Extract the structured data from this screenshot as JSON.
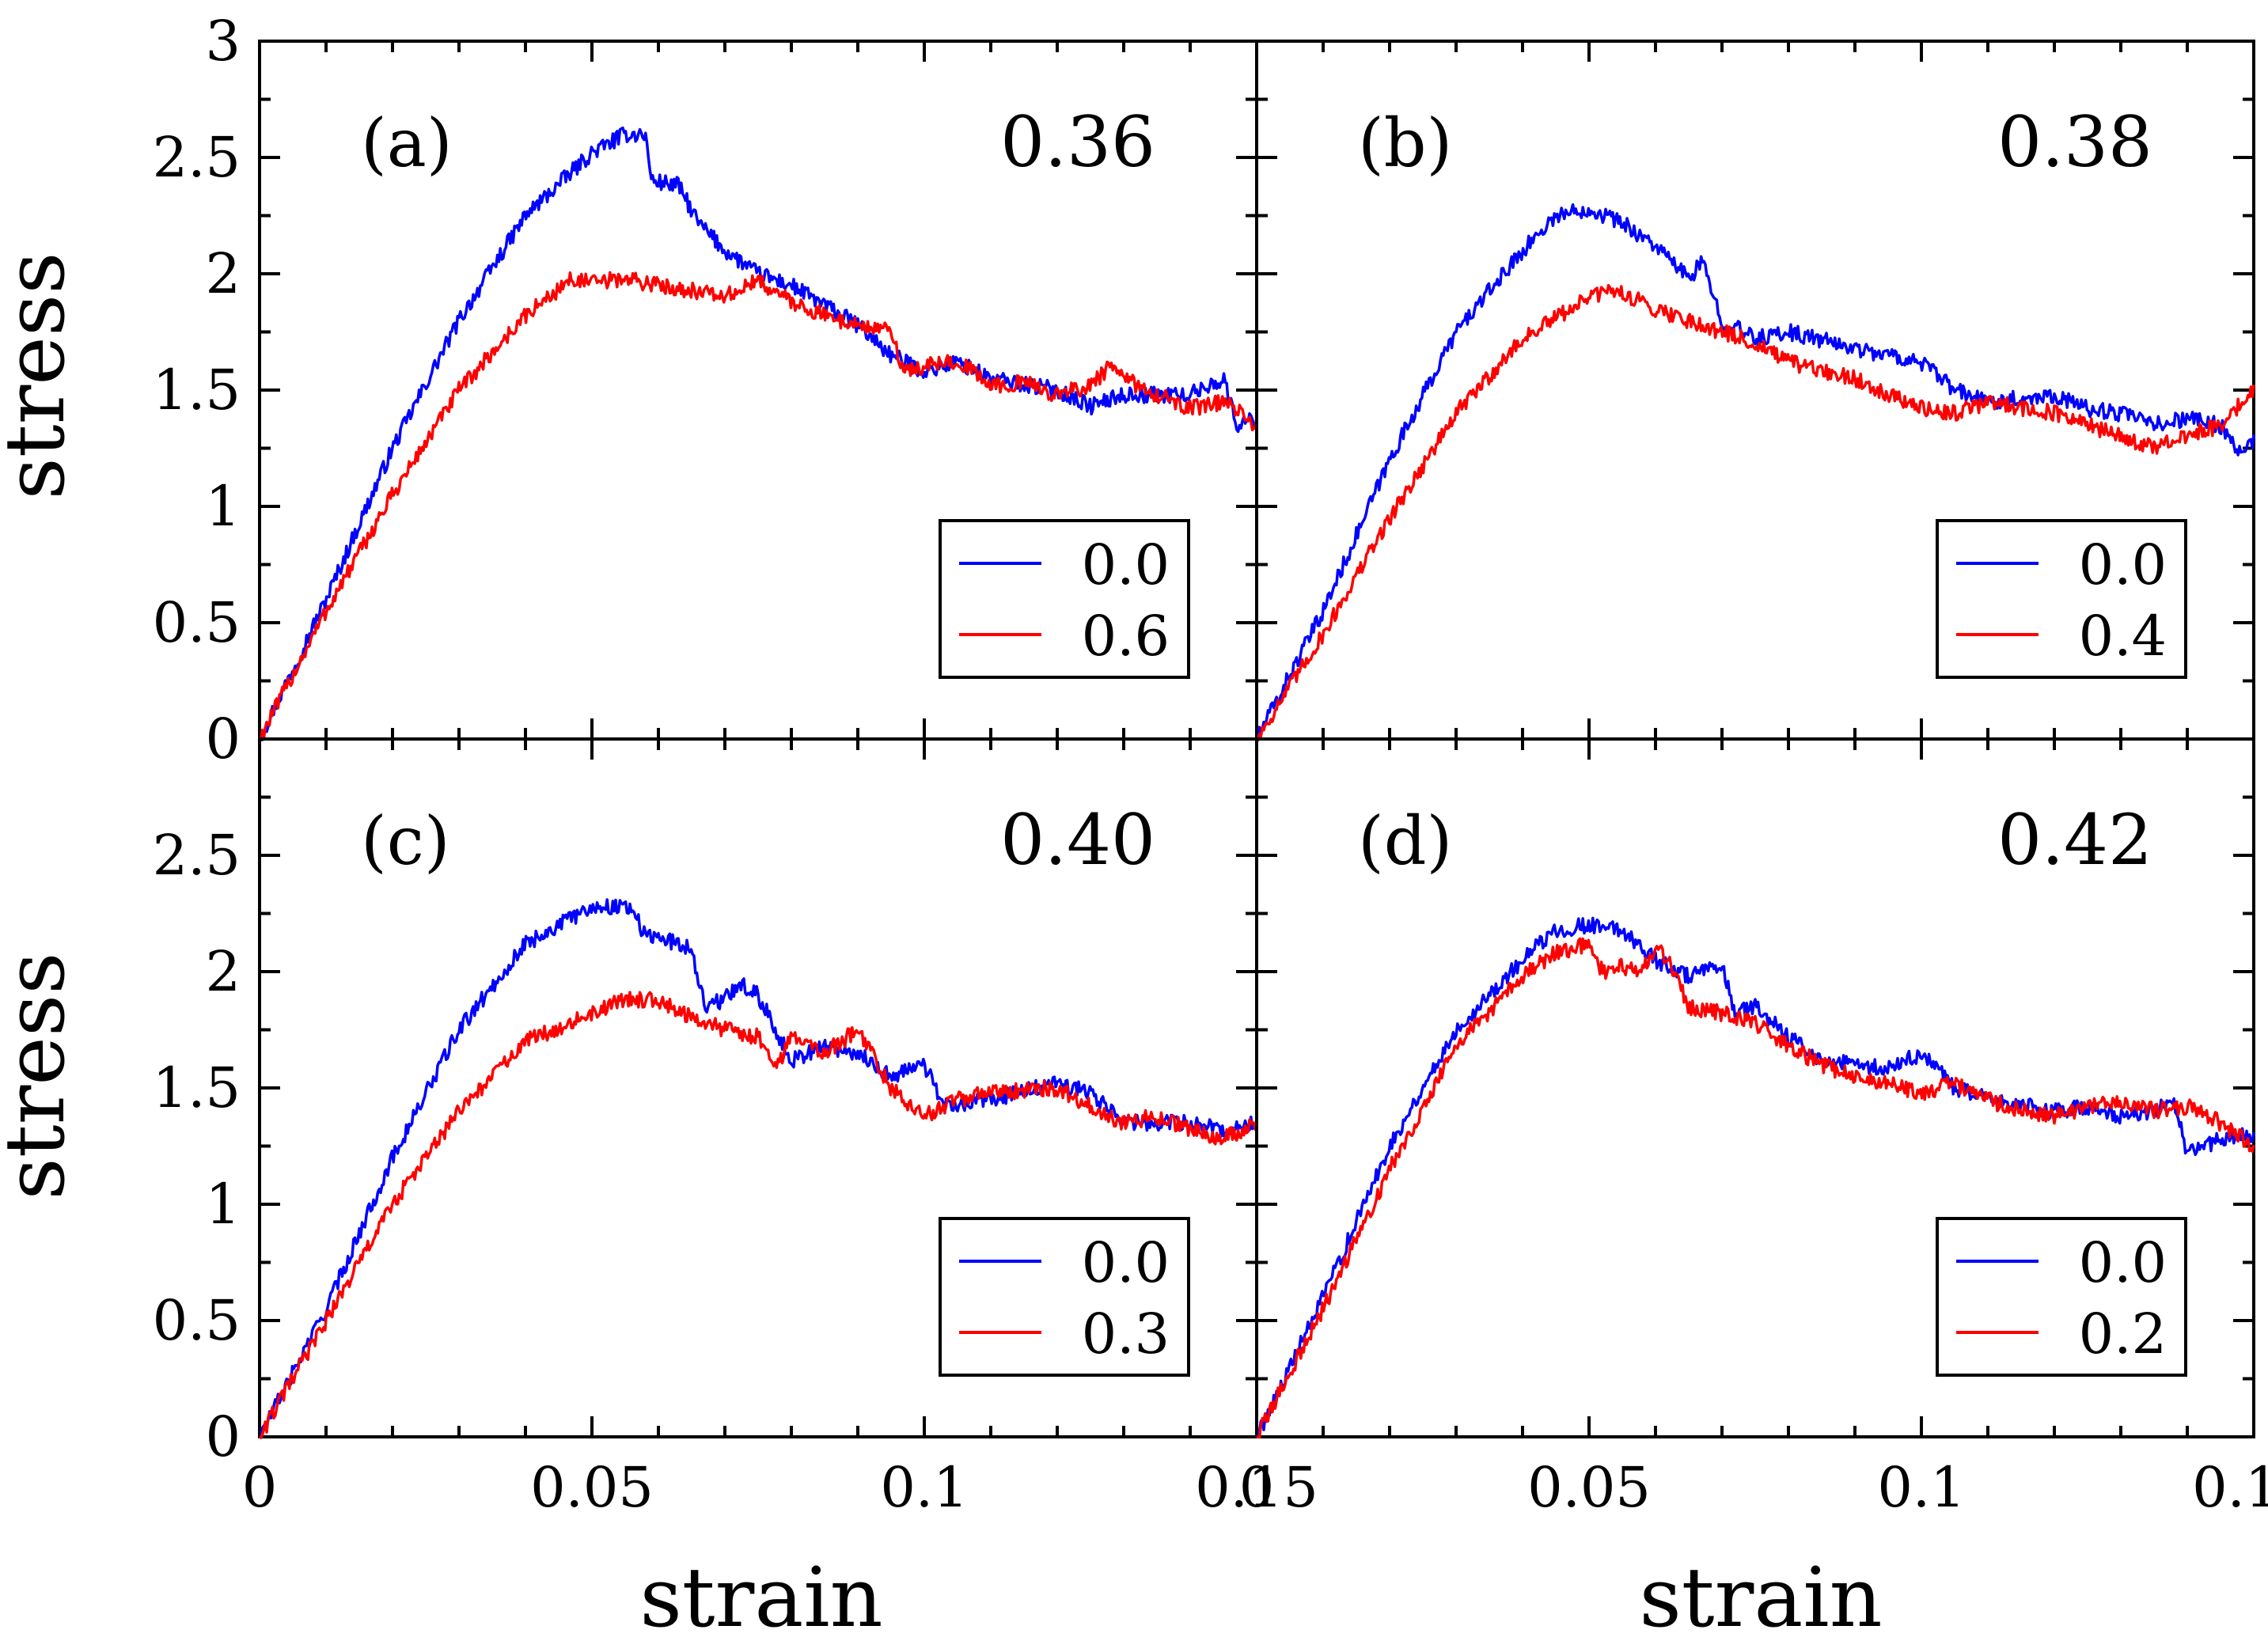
{
  "chart_data": {
    "type": "line",
    "layout": "2x2 panels with shared axes",
    "xlabel": "strain",
    "ylabel": "stress",
    "xlim": [
      0,
      0.15
    ],
    "ylim": [
      0,
      3
    ],
    "xticks": [
      0,
      0.05,
      0.1,
      0.15
    ],
    "xtick_labels": [
      "0",
      "0.05",
      "0.1",
      "0.15"
    ],
    "yticks_top": [
      0,
      0.5,
      1,
      1.5,
      2,
      2.5,
      3
    ],
    "ytick_labels_top": [
      "0",
      "0.5",
      "1",
      "1.5",
      "2",
      "2.5",
      "3"
    ],
    "yticks_bottom": [
      0,
      0.5,
      1,
      1.5,
      2,
      2.5
    ],
    "ytick_labels_bottom": [
      "0",
      "0.5",
      "1",
      "1.5",
      "2",
      "2.5"
    ],
    "colors": {
      "blue": "#0000ff",
      "red": "#ff0000"
    },
    "panels": [
      {
        "label": "(a)",
        "value_label": "0.36",
        "series": [
          {
            "name": "0.0",
            "color": "#0000ff",
            "x": [
              0,
              0.01,
              0.02,
              0.03,
              0.04,
              0.05,
              0.055,
              0.058,
              0.059,
              0.063,
              0.066,
              0.07,
              0.075,
              0.08,
              0.09,
              0.095,
              0.1,
              0.105,
              0.11,
              0.12,
              0.125,
              0.13,
              0.14,
              0.145,
              0.147,
              0.15
            ],
            "y": [
              0,
              0.6,
              1.25,
              1.8,
              2.25,
              2.52,
              2.6,
              2.6,
              2.4,
              2.38,
              2.22,
              2.1,
              2.0,
              1.95,
              1.78,
              1.65,
              1.58,
              1.62,
              1.55,
              1.5,
              1.43,
              1.48,
              1.48,
              1.55,
              1.35,
              1.38
            ]
          },
          {
            "name": "0.6",
            "color": "#ff0000",
            "x": [
              0,
              0.01,
              0.02,
              0.03,
              0.04,
              0.047,
              0.05,
              0.055,
              0.06,
              0.065,
              0.07,
              0.075,
              0.08,
              0.085,
              0.09,
              0.095,
              0.097,
              0.1,
              0.105,
              0.11,
              0.115,
              0.12,
              0.125,
              0.128,
              0.13,
              0.135,
              0.14,
              0.145,
              0.15
            ],
            "y": [
              0,
              0.55,
              1.05,
              1.5,
              1.82,
              1.98,
              1.96,
              1.98,
              1.95,
              1.93,
              1.9,
              1.97,
              1.88,
              1.82,
              1.78,
              1.75,
              1.58,
              1.6,
              1.63,
              1.52,
              1.53,
              1.48,
              1.52,
              1.6,
              1.55,
              1.48,
              1.42,
              1.45,
              1.35
            ]
          }
        ]
      },
      {
        "label": "(b)",
        "value_label": "0.38",
        "series": [
          {
            "name": "0.0",
            "color": "#0000ff",
            "x": [
              0,
              0.01,
              0.02,
              0.03,
              0.04,
              0.045,
              0.05,
              0.055,
              0.06,
              0.065,
              0.067,
              0.07,
              0.075,
              0.08,
              0.09,
              0.1,
              0.105,
              0.11,
              0.12,
              0.125,
              0.13,
              0.135,
              0.14,
              0.145,
              0.148,
              0.15
            ],
            "y": [
              0,
              0.55,
              1.2,
              1.75,
              2.1,
              2.25,
              2.28,
              2.22,
              2.12,
              1.98,
              2.05,
              1.8,
              1.72,
              1.75,
              1.68,
              1.62,
              1.5,
              1.45,
              1.48,
              1.42,
              1.4,
              1.35,
              1.38,
              1.35,
              1.22,
              1.28
            ]
          },
          {
            "name": "0.4",
            "color": "#ff0000",
            "x": [
              0,
              0.01,
              0.02,
              0.03,
              0.04,
              0.05,
              0.054,
              0.06,
              0.065,
              0.07,
              0.075,
              0.08,
              0.085,
              0.09,
              0.1,
              0.105,
              0.11,
              0.12,
              0.125,
              0.13,
              0.135,
              0.14,
              0.145,
              0.15
            ],
            "y": [
              0,
              0.45,
              0.95,
              1.4,
              1.72,
              1.9,
              1.93,
              1.85,
              1.8,
              1.75,
              1.7,
              1.62,
              1.58,
              1.55,
              1.42,
              1.4,
              1.45,
              1.4,
              1.35,
              1.3,
              1.25,
              1.3,
              1.35,
              1.5
            ]
          }
        ]
      },
      {
        "label": "(c)",
        "value_label": "0.40",
        "series": [
          {
            "name": "0.0",
            "color": "#0000ff",
            "x": [
              0,
              0.01,
              0.02,
              0.03,
              0.04,
              0.05,
              0.056,
              0.058,
              0.06,
              0.065,
              0.067,
              0.07,
              0.072,
              0.075,
              0.08,
              0.085,
              0.09,
              0.095,
              0.1,
              0.103,
              0.11,
              0.12,
              0.125,
              0.13,
              0.14,
              0.145,
              0.15
            ],
            "y": [
              0,
              0.55,
              1.2,
              1.75,
              2.12,
              2.28,
              2.28,
              2.15,
              2.15,
              2.1,
              1.85,
              1.88,
              1.95,
              1.9,
              1.62,
              1.68,
              1.65,
              1.55,
              1.6,
              1.42,
              1.45,
              1.52,
              1.48,
              1.35,
              1.35,
              1.32,
              1.35
            ]
          },
          {
            "name": "0.3",
            "color": "#ff0000",
            "x": [
              0,
              0.01,
              0.02,
              0.03,
              0.04,
              0.05,
              0.055,
              0.06,
              0.065,
              0.07,
              0.075,
              0.078,
              0.08,
              0.085,
              0.09,
              0.095,
              0.1,
              0.105,
              0.11,
              0.12,
              0.125,
              0.13,
              0.135,
              0.14,
              0.145,
              0.15
            ],
            "y": [
              0,
              0.5,
              1.0,
              1.4,
              1.7,
              1.82,
              1.88,
              1.88,
              1.8,
              1.75,
              1.72,
              1.6,
              1.72,
              1.65,
              1.75,
              1.5,
              1.38,
              1.45,
              1.48,
              1.5,
              1.42,
              1.35,
              1.38,
              1.32,
              1.28,
              1.35
            ]
          }
        ]
      },
      {
        "label": "(d)",
        "value_label": "0.42",
        "series": [
          {
            "name": "0.0",
            "color": "#0000ff",
            "x": [
              0,
              0.01,
              0.02,
              0.03,
              0.04,
              0.045,
              0.05,
              0.055,
              0.06,
              0.065,
              0.07,
              0.072,
              0.075,
              0.08,
              0.085,
              0.09,
              0.095,
              0.1,
              0.105,
              0.11,
              0.12,
              0.125,
              0.13,
              0.135,
              0.138,
              0.14,
              0.145,
              0.15
            ],
            "y": [
              0,
              0.6,
              1.25,
              1.75,
              2.05,
              2.18,
              2.2,
              2.18,
              2.05,
              1.98,
              2.02,
              1.82,
              1.85,
              1.72,
              1.62,
              1.6,
              1.58,
              1.65,
              1.5,
              1.45,
              1.4,
              1.42,
              1.38,
              1.4,
              1.45,
              1.22,
              1.28,
              1.3
            ]
          },
          {
            "name": "0.2",
            "color": "#ff0000",
            "x": [
              0,
              0.01,
              0.02,
              0.03,
              0.04,
              0.045,
              0.05,
              0.052,
              0.055,
              0.058,
              0.06,
              0.062,
              0.065,
              0.07,
              0.075,
              0.08,
              0.085,
              0.09,
              0.1,
              0.105,
              0.11,
              0.115,
              0.12,
              0.13,
              0.135,
              0.14,
              0.145,
              0.15
            ],
            "y": [
              0,
              0.55,
              1.15,
              1.68,
              1.98,
              2.08,
              2.12,
              2.0,
              2.02,
              2.0,
              2.1,
              2.05,
              1.85,
              1.82,
              1.78,
              1.68,
              1.6,
              1.55,
              1.48,
              1.52,
              1.45,
              1.4,
              1.38,
              1.45,
              1.4,
              1.42,
              1.35,
              1.25
            ]
          }
        ]
      }
    ]
  }
}
